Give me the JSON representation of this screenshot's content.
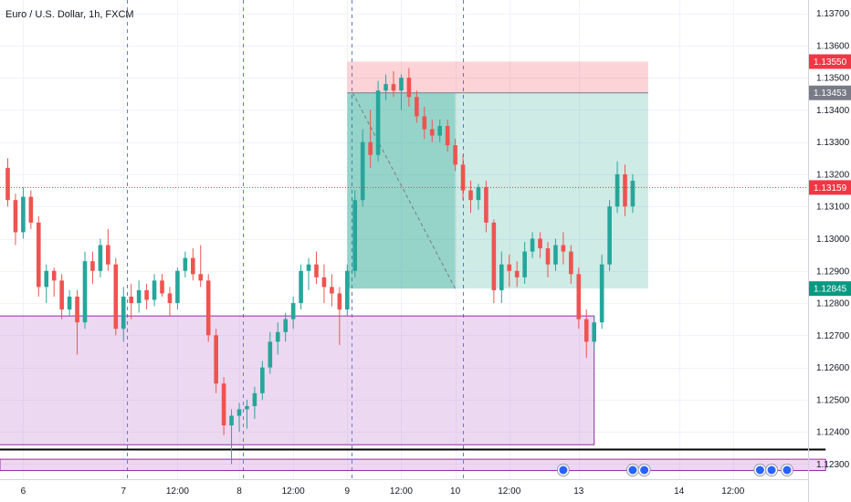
{
  "chart_data": {
    "type": "candlestick",
    "title": "Euro / U.S. Dollar, 1h, FXCM",
    "x_ticks": [
      {
        "label": "6",
        "index": 2
      },
      {
        "label": "7",
        "index": 15
      },
      {
        "label": "12:00",
        "index": 22
      },
      {
        "label": "8",
        "index": 30
      },
      {
        "label": "12:00",
        "index": 37
      },
      {
        "label": "9",
        "index": 44
      },
      {
        "label": "12:00",
        "index": 51
      },
      {
        "label": "10",
        "index": 58
      },
      {
        "label": "12:00",
        "index": 65
      },
      {
        "label": "13",
        "index": 74
      },
      {
        "label": "14",
        "index": 87
      },
      {
        "label": "12:00",
        "index": 94
      }
    ],
    "y_ticks": [
      "1.13700",
      "1.13600",
      "1.13500",
      "1.13400",
      "1.13300",
      "1.13200",
      "1.13100",
      "1.13000",
      "1.12900",
      "1.12800",
      "1.12700",
      "1.12600",
      "1.12500",
      "1.12400",
      "1.12300"
    ],
    "ylim": [
      1.1227,
      1.1373
    ],
    "session_lines": [
      15.5,
      30.5,
      44.5,
      59
    ],
    "colors": {
      "up": "#26a69a",
      "down": "#ef5350"
    },
    "candles": [
      [
        1.1322,
        1.1325,
        1.131,
        1.1312
      ],
      [
        1.1312,
        1.1314,
        1.1298,
        1.1302
      ],
      [
        1.1302,
        1.1316,
        1.13,
        1.1313
      ],
      [
        1.1313,
        1.1315,
        1.1303,
        1.1305
      ],
      [
        1.1305,
        1.1307,
        1.1282,
        1.1285
      ],
      [
        1.1285,
        1.1292,
        1.128,
        1.129
      ],
      [
        1.129,
        1.1291,
        1.1282,
        1.1287
      ],
      [
        1.1287,
        1.1289,
        1.1275,
        1.1278
      ],
      [
        1.1278,
        1.1284,
        1.1276,
        1.1282
      ],
      [
        1.1282,
        1.1284,
        1.1264,
        1.1274
      ],
      [
        1.1274,
        1.1296,
        1.1272,
        1.1293
      ],
      [
        1.1293,
        1.1296,
        1.1286,
        1.129
      ],
      [
        1.129,
        1.13,
        1.1288,
        1.1298
      ],
      [
        1.1298,
        1.1303,
        1.129,
        1.1292
      ],
      [
        1.1292,
        1.1294,
        1.127,
        1.1272
      ],
      [
        1.1272,
        1.1285,
        1.1268,
        1.1282
      ],
      [
        1.1282,
        1.1286,
        1.1275,
        1.128
      ],
      [
        1.128,
        1.1287,
        1.1277,
        1.1284
      ],
      [
        1.1284,
        1.1286,
        1.1278,
        1.1281
      ],
      [
        1.1281,
        1.1289,
        1.1279,
        1.1287
      ],
      [
        1.1287,
        1.1289,
        1.1282,
        1.1283
      ],
      [
        1.1283,
        1.1285,
        1.1276,
        1.128
      ],
      [
        1.128,
        1.1291,
        1.1278,
        1.129
      ],
      [
        1.129,
        1.1296,
        1.1288,
        1.1294
      ],
      [
        1.1294,
        1.1297,
        1.1287,
        1.1289
      ],
      [
        1.1289,
        1.1298,
        1.1285,
        1.1287
      ],
      [
        1.1287,
        1.1289,
        1.1268,
        1.127
      ],
      [
        1.127,
        1.1272,
        1.1252,
        1.1255
      ],
      [
        1.1255,
        1.1257,
        1.1239,
        1.1242
      ],
      [
        1.1242,
        1.1247,
        1.123,
        1.1245
      ],
      [
        1.1245,
        1.1249,
        1.124,
        1.1247
      ],
      [
        1.1247,
        1.125,
        1.1241,
        1.1248
      ],
      [
        1.1248,
        1.1254,
        1.1244,
        1.1252
      ],
      [
        1.1252,
        1.1262,
        1.125,
        1.126
      ],
      [
        1.126,
        1.1271,
        1.1258,
        1.1268
      ],
      [
        1.1268,
        1.1274,
        1.1264,
        1.1271
      ],
      [
        1.1271,
        1.1277,
        1.1268,
        1.1275
      ],
      [
        1.1275,
        1.1282,
        1.1272,
        1.128
      ],
      [
        1.128,
        1.1292,
        1.1278,
        1.129
      ],
      [
        1.129,
        1.1294,
        1.1284,
        1.1292
      ],
      [
        1.1292,
        1.1296,
        1.1286,
        1.1288
      ],
      [
        1.1288,
        1.1292,
        1.128,
        1.1285
      ],
      [
        1.1285,
        1.1289,
        1.1279,
        1.1283
      ],
      [
        1.1283,
        1.1285,
        1.1267,
        1.1278
      ],
      [
        1.1278,
        1.1292,
        1.1276,
        1.129
      ],
      [
        1.129,
        1.1315,
        1.1288,
        1.1312
      ],
      [
        1.1312,
        1.1334,
        1.131,
        1.133
      ],
      [
        1.133,
        1.134,
        1.1322,
        1.1326
      ],
      [
        1.1326,
        1.1349,
        1.1324,
        1.1346
      ],
      [
        1.1346,
        1.1351,
        1.1343,
        1.1348
      ],
      [
        1.1348,
        1.1352,
        1.1344,
        1.1346
      ],
      [
        1.1346,
        1.1351,
        1.134,
        1.135
      ],
      [
        1.135,
        1.1353,
        1.1341,
        1.1344
      ],
      [
        1.1344,
        1.1346,
        1.1336,
        1.1338
      ],
      [
        1.1338,
        1.1341,
        1.1331,
        1.1334
      ],
      [
        1.1334,
        1.1337,
        1.133,
        1.1332
      ],
      [
        1.1332,
        1.1337,
        1.133,
        1.1335
      ],
      [
        1.1335,
        1.1337,
        1.1327,
        1.1329
      ],
      [
        1.1329,
        1.1331,
        1.1321,
        1.1323
      ],
      [
        1.1323,
        1.1326,
        1.1312,
        1.1315
      ],
      [
        1.1315,
        1.1318,
        1.1308,
        1.1312
      ],
      [
        1.1312,
        1.1317,
        1.1309,
        1.1316
      ],
      [
        1.1316,
        1.1318,
        1.1302,
        1.1305
      ],
      [
        1.1305,
        1.1306,
        1.128,
        1.1284
      ],
      [
        1.1284,
        1.1296,
        1.128,
        1.1292
      ],
      [
        1.1292,
        1.1295,
        1.1285,
        1.129
      ],
      [
        1.129,
        1.1293,
        1.1285,
        1.1288
      ],
      [
        1.1288,
        1.1299,
        1.1286,
        1.1296
      ],
      [
        1.1296,
        1.1302,
        1.1294,
        1.13
      ],
      [
        1.13,
        1.1302,
        1.1294,
        1.1297
      ],
      [
        1.1297,
        1.1299,
        1.1288,
        1.1292
      ],
      [
        1.1292,
        1.13,
        1.129,
        1.1298
      ],
      [
        1.1298,
        1.1302,
        1.1292,
        1.1296
      ],
      [
        1.1296,
        1.1298,
        1.1286,
        1.1289
      ],
      [
        1.1289,
        1.1291,
        1.1272,
        1.1275
      ],
      [
        1.1275,
        1.1278,
        1.1263,
        1.1268
      ],
      [
        1.1268,
        1.1276,
        1.1265,
        1.1274
      ],
      [
        1.1274,
        1.1295,
        1.1272,
        1.1292
      ],
      [
        1.1292,
        1.1312,
        1.129,
        1.131
      ],
      [
        1.131,
        1.1324,
        1.1308,
        1.132
      ],
      [
        1.132,
        1.1323,
        1.1307,
        1.131
      ],
      [
        1.131,
        1.132,
        1.1308,
        1.1318
      ]
    ]
  },
  "trade": {
    "stop_price": 1.1355,
    "entry_price": 1.13453,
    "target_price": 1.12845,
    "start_index": 44,
    "end_index": 83,
    "fill_end_index": 58
  },
  "zone": {
    "top": 1.1276,
    "bottom": 1.1236,
    "start_index": -2,
    "end_index": 76
  },
  "base_strip": {
    "line": 1.12345,
    "top": 1.12315,
    "bottom": 1.1228,
    "end_index": 106
  },
  "current_price": 1.13159,
  "price_badges": [
    {
      "label": "1.13550",
      "value": 1.1355,
      "color": "#f23645"
    },
    {
      "label": "1.13453",
      "value": 1.13453,
      "color": "#787b86"
    },
    {
      "label": "1.13159",
      "value": 1.13159,
      "color": "#f23645"
    },
    {
      "label": "1.12845",
      "value": 1.12845,
      "color": "#089981"
    }
  ],
  "event_markers": [
    {
      "index": 72
    },
    {
      "index": 81
    },
    {
      "index": 82.5
    },
    {
      "index": 97.5
    },
    {
      "index": 99
    },
    {
      "index": 101
    }
  ]
}
